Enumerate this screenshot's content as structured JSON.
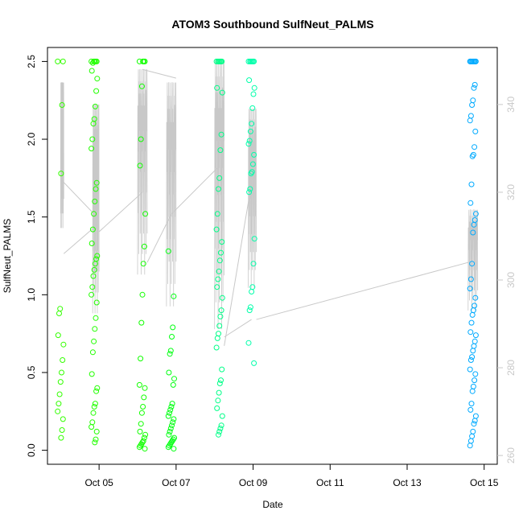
{
  "chart_data": {
    "type": "scatter",
    "title": "ATOM3 Southbound SulfNeut_PALMS",
    "xlabel": "Date",
    "ylabel": "SulfNeut_PALMS",
    "x_axis": {
      "type": "date",
      "range": [
        "2017-10-03T15:50",
        "2017-10-15T08:10"
      ],
      "ticks": [
        {
          "date": "2017-10-05",
          "label": "Oct 05"
        },
        {
          "date": "2017-10-07",
          "label": "Oct 07"
        },
        {
          "date": "2017-10-09",
          "label": "Oct 09"
        },
        {
          "date": "2017-10-11",
          "label": "Oct 11"
        },
        {
          "date": "2017-10-13",
          "label": "Oct 13"
        },
        {
          "date": "2017-10-15",
          "label": "Oct 15"
        }
      ]
    },
    "y_axis": {
      "range": [
        -0.09,
        2.59
      ],
      "ticks": [
        0.0,
        0.5,
        1.0,
        1.5,
        2.0,
        2.5
      ],
      "tick_labels": [
        "0.0",
        "0.5",
        "1.0",
        "1.5",
        "2.0",
        "2.5"
      ]
    },
    "y2_axis": {
      "range": [
        258,
        353
      ],
      "ticks": [
        260,
        280,
        300,
        320,
        340
      ],
      "tick_labels": [
        "260",
        "280",
        "300",
        "320",
        "340"
      ],
      "color": "#c8c8c8"
    },
    "grid": false,
    "marker": "open-circle",
    "point_clusters": [
      {
        "date": "2017-10-04T00:00",
        "color": "#33ff00",
        "values": [
          2.5,
          2.5,
          2.22,
          1.78,
          0.91,
          0.88,
          0.74,
          0.68,
          0.58,
          0.5,
          0.44,
          0.36,
          0.3,
          0.25,
          0.2,
          0.13,
          0.08
        ]
      },
      {
        "date": "2017-10-04T21:00",
        "color": "#22ff00",
        "values": [
          2.5,
          2.5,
          2.5,
          2.5,
          2.5,
          2.49,
          2.44,
          2.39,
          2.31,
          2.21,
          2.13,
          2.1,
          2.0,
          1.94,
          1.72,
          1.68,
          1.6,
          1.52,
          1.42,
          1.33,
          1.25,
          1.23,
          1.2,
          1.16,
          1.12,
          1.05,
          1.0,
          0.95,
          0.85,
          0.78,
          0.7,
          0.63,
          0.49,
          0.4,
          0.38,
          0.3,
          0.28,
          0.24,
          0.18,
          0.15,
          0.12,
          0.07,
          0.05
        ]
      },
      {
        "date": "2017-10-06T03:00",
        "color": "#11ff00",
        "values": [
          2.5,
          2.5,
          2.5,
          2.5,
          2.34,
          2.0,
          1.83,
          1.52,
          1.31,
          1.2,
          1.0,
          0.82,
          0.59,
          0.42,
          0.4,
          0.34,
          0.28,
          0.24,
          0.17,
          0.12,
          0.1,
          0.08,
          0.06,
          0.05,
          0.04,
          0.03,
          0.02,
          0.01
        ]
      },
      {
        "date": "2017-10-06T21:00",
        "color": "#00ff11",
        "values": [
          1.28,
          0.99,
          0.79,
          0.73,
          0.64,
          0.62,
          0.5,
          0.46,
          0.42,
          0.3,
          0.28,
          0.26,
          0.24,
          0.22,
          0.2,
          0.18,
          0.16,
          0.14,
          0.12,
          0.1,
          0.08,
          0.07,
          0.06,
          0.05,
          0.04,
          0.03,
          0.02,
          0.01
        ]
      },
      {
        "date": "2017-10-08T03:00",
        "color": "#00ff88",
        "values": [
          2.5,
          2.5,
          2.5,
          2.5,
          2.5,
          2.5,
          2.33,
          2.3,
          2.03,
          1.93,
          1.75,
          1.68,
          1.52,
          1.42,
          1.34,
          1.27,
          1.22,
          1.15,
          1.1,
          1.05,
          0.98,
          0.9,
          0.86,
          0.8,
          0.75,
          0.72,
          0.66,
          0.52,
          0.45,
          0.43,
          0.37,
          0.32,
          0.27,
          0.22,
          0.16,
          0.14,
          0.12,
          0.1
        ]
      },
      {
        "date": "2017-10-08T23:00",
        "color": "#00ffaa",
        "values": [
          2.5,
          2.5,
          2.5,
          2.5,
          2.5,
          2.5,
          2.38,
          2.33,
          2.29,
          2.2,
          2.1,
          2.05,
          1.99,
          1.97,
          1.9,
          1.84,
          1.79,
          1.78,
          1.68,
          1.66,
          1.36,
          1.2,
          1.05,
          1.02,
          0.92,
          0.9,
          0.69,
          0.56
        ]
      },
      {
        "date": "2017-10-14T17:00",
        "color": "#00aaff",
        "values": [
          2.5,
          2.5,
          2.5,
          2.5,
          2.5,
          2.5,
          2.5,
          2.5,
          2.35,
          2.33,
          2.25,
          2.22,
          2.15,
          2.12,
          2.05,
          1.95,
          1.9,
          1.89,
          1.71,
          1.59,
          1.52,
          1.48,
          1.45,
          1.4,
          1.2,
          1.1,
          1.04,
          0.98,
          0.93,
          0.9,
          0.87,
          0.82,
          0.76,
          0.74,
          0.7,
          0.67,
          0.64,
          0.6,
          0.58,
          0.52,
          0.49,
          0.45,
          0.41,
          0.38,
          0.3,
          0.26,
          0.22,
          0.19,
          0.17,
          0.12,
          0.09,
          0.06,
          0.03
        ]
      }
    ],
    "secondary_series": {
      "name": "",
      "color": "#c8c8c8",
      "axis": "y2",
      "segments": [
        {
          "from": "2017-10-04T00:00",
          "to": "2017-10-04T02:00",
          "y_start": 306,
          "y_end": 345,
          "kind": "profile"
        },
        {
          "from": "2017-10-04T00:00",
          "to": "2017-10-04T21:00",
          "y_start": 323,
          "y_end": 315,
          "kind": "line"
        },
        {
          "from": "2017-10-04T02:00",
          "to": "2017-10-04T21:00",
          "y_start": 306,
          "y_end": 312,
          "kind": "line"
        },
        {
          "from": "2017-10-04T20:00",
          "to": "2017-10-05T00:00",
          "y_start": 284,
          "y_end": 340,
          "kind": "profile"
        },
        {
          "from": "2017-10-05T00:00",
          "to": "2017-10-06T03:00",
          "y_start": 311,
          "y_end": 320,
          "kind": "line"
        },
        {
          "from": "2017-10-06T00:00",
          "to": "2017-10-06T06:00",
          "y_start": 293,
          "y_end": 348,
          "kind": "profile"
        },
        {
          "from": "2017-10-06T03:00",
          "to": "2017-10-07T00:00",
          "y_start": 348,
          "y_end": 346,
          "kind": "line"
        },
        {
          "from": "2017-10-06T06:00",
          "to": "2017-10-06T21:00",
          "y_start": 304,
          "y_end": 315,
          "kind": "line"
        },
        {
          "from": "2017-10-06T18:00",
          "to": "2017-10-07T00:00",
          "y_start": 285,
          "y_end": 345,
          "kind": "profile"
        },
        {
          "from": "2017-10-06T21:00",
          "to": "2017-10-08T03:00",
          "y_start": 315,
          "y_end": 326,
          "kind": "line"
        },
        {
          "from": "2017-10-08T00:00",
          "to": "2017-10-08T06:00",
          "y_start": 278,
          "y_end": 350,
          "kind": "profile"
        },
        {
          "from": "2017-10-08T06:00",
          "to": "2017-10-08T23:00",
          "y_start": 285,
          "y_end": 322,
          "kind": "line"
        },
        {
          "from": "2017-10-08T06:00",
          "to": "2017-10-08T23:00",
          "y_start": 287,
          "y_end": 291,
          "kind": "line"
        },
        {
          "from": "2017-10-08T21:00",
          "to": "2017-10-09T02:00",
          "y_start": 291,
          "y_end": 339,
          "kind": "profile"
        },
        {
          "from": "2017-10-09T02:00",
          "to": "2017-10-14T14:00",
          "y_start": 291,
          "y_end": 304,
          "kind": "line"
        },
        {
          "from": "2017-10-14T14:00",
          "to": "2017-10-14T20:00",
          "y_start": 289,
          "y_end": 316,
          "kind": "profile"
        }
      ]
    }
  }
}
